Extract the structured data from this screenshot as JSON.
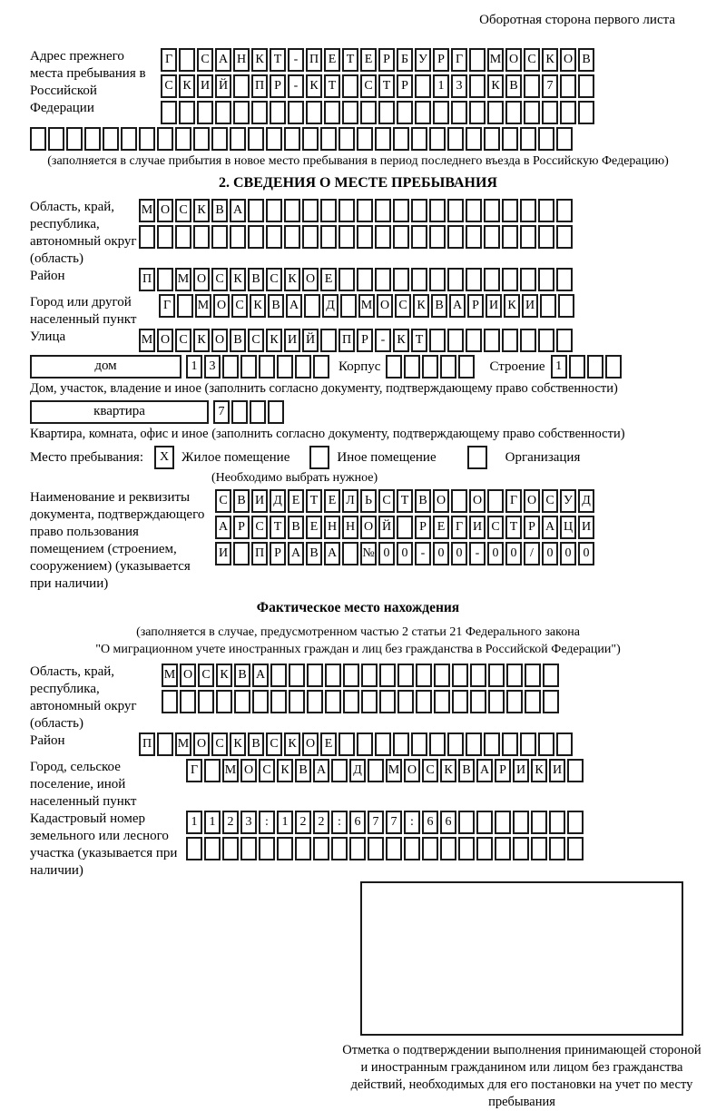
{
  "colors": {
    "ink": "#1a1a1a",
    "paper": "#ffffff"
  },
  "page": {
    "corner_note": "Оборотная сторона первого листа"
  },
  "prev_address": {
    "label": "Адрес прежнего места пребывания в Российской Федерации",
    "row1": [
      "Г",
      "",
      "С",
      "А",
      "Н",
      "К",
      "Т",
      "-",
      "П",
      "Е",
      "Т",
      "Е",
      "Р",
      "Б",
      "У",
      "Р",
      "Г",
      "",
      "М",
      "О",
      "С",
      "К",
      "О",
      "В"
    ],
    "row2": [
      "С",
      "К",
      "И",
      "Й",
      "",
      "П",
      "Р",
      "-",
      "К",
      "Т",
      "",
      "С",
      "Т",
      "Р",
      "",
      "1",
      "3",
      "",
      "К",
      "В",
      "",
      "7",
      "",
      ""
    ],
    "row3": [
      "",
      "",
      "",
      "",
      "",
      "",
      "",
      "",
      "",
      "",
      "",
      "",
      "",
      "",
      "",
      "",
      "",
      "",
      "",
      "",
      "",
      "",
      "",
      ""
    ],
    "row4": [
      "",
      "",
      "",
      "",
      "",
      "",
      "",
      "",
      "",
      "",
      "",
      "",
      "",
      "",
      "",
      "",
      "",
      "",
      "",
      "",
      "",
      "",
      "",
      "",
      "",
      "",
      "",
      "",
      "",
      ""
    ],
    "note": "(заполняется в случае прибытия в новое место пребывания в период последнего въезда в Российскую Федерацию)"
  },
  "section2": {
    "title": "2. СВЕДЕНИЯ О МЕСТЕ ПРЕБЫВАНИЯ",
    "region": {
      "label": "Область, край, республика, автономный округ (область)",
      "row1": [
        "М",
        "О",
        "С",
        "К",
        "В",
        "А",
        "",
        "",
        "",
        "",
        "",
        "",
        "",
        "",
        "",
        "",
        "",
        "",
        "",
        "",
        "",
        "",
        "",
        ""
      ],
      "row2": [
        "",
        "",
        "",
        "",
        "",
        "",
        "",
        "",
        "",
        "",
        "",
        "",
        "",
        "",
        "",
        "",
        "",
        "",
        "",
        "",
        "",
        "",
        "",
        ""
      ]
    },
    "district": {
      "label": "Район",
      "row": [
        "П",
        "",
        "М",
        "О",
        "С",
        "К",
        "В",
        "С",
        "К",
        "О",
        "Е",
        "",
        "",
        "",
        "",
        "",
        "",
        "",
        "",
        "",
        "",
        "",
        "",
        ""
      ]
    },
    "city": {
      "label": "Город или другой населенный пункт",
      "row": [
        "Г",
        "",
        "М",
        "О",
        "С",
        "К",
        "В",
        "А",
        "",
        "Д",
        "",
        "М",
        "О",
        "С",
        "К",
        "В",
        "А",
        "Р",
        "И",
        "К",
        "И",
        "",
        ""
      ]
    },
    "street": {
      "label": "Улица",
      "row": [
        "М",
        "О",
        "С",
        "К",
        "О",
        "В",
        "С",
        "К",
        "И",
        "Й",
        "",
        "П",
        "Р",
        "-",
        "К",
        "Т",
        "",
        "",
        "",
        "",
        "",
        "",
        "",
        ""
      ]
    },
    "house": {
      "box_label": "дом",
      "cells": [
        "1",
        "3",
        "",
        "",
        "",
        "",
        "",
        ""
      ],
      "korpus_label": "Корпус",
      "korpus_cells": [
        "",
        "",
        "",
        "",
        ""
      ],
      "stroenie_label": "Строение",
      "stroenie_cells": [
        "1",
        "",
        "",
        ""
      ],
      "note": "Дом, участок, владение и иное (заполнить согласно документу, подтверждающему право собственности)"
    },
    "apartment": {
      "box_label": "квартира",
      "cells": [
        "7",
        "",
        "",
        ""
      ],
      "note": "Квартира, комната, офис и иное (заполнить согласно документу, подтверждающему право собственности)"
    },
    "stay_type": {
      "label": "Место пребывания:",
      "options": [
        {
          "label": "Жилое помещение",
          "checked": "X"
        },
        {
          "label": "Иное помещение",
          "checked": ""
        },
        {
          "label": "Организация",
          "checked": ""
        }
      ],
      "note": "(Необходимо выбрать нужное)"
    },
    "document": {
      "label": "Наименование и реквизиты документа, подтверждающего право пользования помещением (строением, сооружением) (указывается при наличии)",
      "row1": [
        "С",
        "В",
        "И",
        "Д",
        "Е",
        "Т",
        "Е",
        "Л",
        "Ь",
        "С",
        "Т",
        "В",
        "О",
        "",
        "О",
        "",
        "Г",
        "О",
        "С",
        "У",
        "Д"
      ],
      "row2": [
        "А",
        "Р",
        "С",
        "Т",
        "В",
        "Е",
        "Н",
        "Н",
        "О",
        "Й",
        "",
        "Р",
        "Е",
        "Г",
        "И",
        "С",
        "Т",
        "Р",
        "А",
        "Ц",
        "И"
      ],
      "row3": [
        "И",
        "",
        "П",
        "Р",
        "А",
        "В",
        "А",
        "",
        "№",
        "0",
        "0",
        "-",
        "0",
        "0",
        "-",
        "0",
        "0",
        "/",
        "0",
        "0",
        "0"
      ]
    }
  },
  "actual_location": {
    "title": "Фактическое место нахождения",
    "note_line1": "(заполняется в случае, предусмотренном частью 2 статьи 21 Федерального закона",
    "note_line2": "\"О миграционном учете иностранных граждан и лиц без гражданства в Российской Федерации\")",
    "region": {
      "label": "Область, край, республика, автономный округ (область)",
      "row1": [
        "М",
        "О",
        "С",
        "К",
        "В",
        "А",
        "",
        "",
        "",
        "",
        "",
        "",
        "",
        "",
        "",
        "",
        "",
        "",
        "",
        "",
        "",
        ""
      ],
      "row2": [
        "",
        "",
        "",
        "",
        "",
        "",
        "",
        "",
        "",
        "",
        "",
        "",
        "",
        "",
        "",
        "",
        "",
        "",
        "",
        "",
        "",
        ""
      ]
    },
    "district": {
      "label": "Район",
      "row": [
        "П",
        "",
        "М",
        "О",
        "С",
        "К",
        "В",
        "С",
        "К",
        "О",
        "Е",
        "",
        "",
        "",
        "",
        "",
        "",
        "",
        "",
        "",
        "",
        "",
        "",
        ""
      ]
    },
    "city": {
      "label": "Город, сельское поселение, иной населенный пункт",
      "row": [
        "Г",
        "",
        "М",
        "О",
        "С",
        "К",
        "В",
        "А",
        "",
        "Д",
        "",
        "М",
        "О",
        "С",
        "К",
        "В",
        "А",
        "Р",
        "И",
        "К",
        "И",
        ""
      ]
    },
    "cadastral": {
      "label": "Кадастровый номер земельного или лесного участка (указывается при наличии)",
      "row1": [
        "1",
        "1",
        "2",
        "3",
        ":",
        "1",
        "2",
        "2",
        ":",
        "6",
        "7",
        "7",
        ":",
        "6",
        "6",
        "",
        "",
        "",
        "",
        "",
        "",
        ""
      ],
      "row2": [
        "",
        "",
        "",
        "",
        "",
        "",
        "",
        "",
        "",
        "",
        "",
        "",
        "",
        "",
        "",
        "",
        "",
        "",
        "",
        "",
        "",
        ""
      ]
    }
  },
  "confirmation": {
    "caption": "Отметка о подтверждении выполнения принимающей стороной и иностранным гражданином или лицом без гражданства действий, необходимых для его постановки на учет по месту пребывания"
  }
}
